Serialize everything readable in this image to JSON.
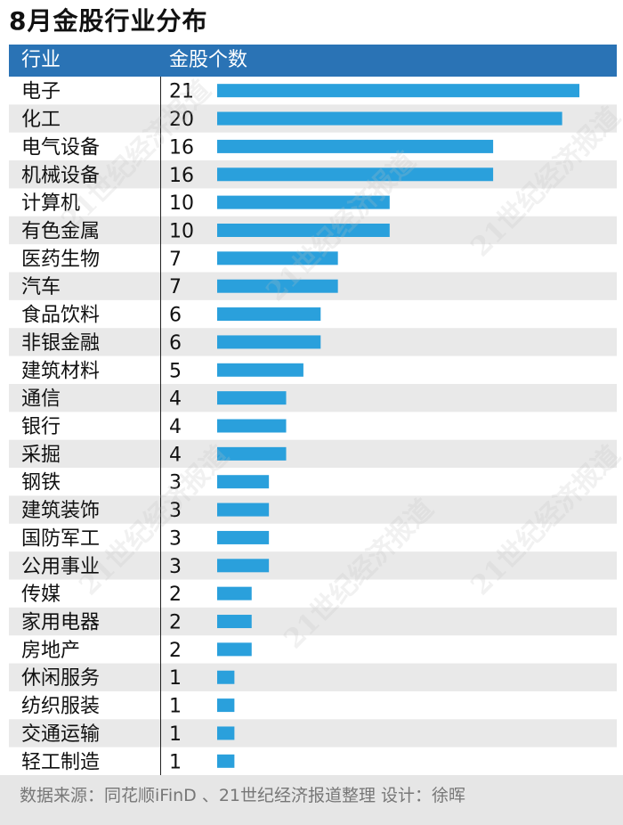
{
  "title": "8月金股行业分布",
  "header": {
    "col1": "行业",
    "col2": "金股个数"
  },
  "chart_data": {
    "type": "bar",
    "orientation": "horizontal",
    "categories": [
      "电子",
      "化工",
      "电气设备",
      "机械设备",
      "计算机",
      "有色金属",
      "医药生物",
      "汽车",
      "食品饮料",
      "非银金融",
      "建筑材料",
      "通信",
      "银行",
      "采掘",
      "钢铁",
      "建筑装饰",
      "国防军工",
      "公用事业",
      "传媒",
      "家用电器",
      "房地产",
      "休闲服务",
      "纺织服装",
      "交通运输",
      "轻工制造"
    ],
    "values": [
      21,
      20,
      16,
      16,
      10,
      10,
      7,
      7,
      6,
      6,
      5,
      4,
      4,
      4,
      3,
      3,
      3,
      3,
      2,
      2,
      2,
      1,
      1,
      1,
      1
    ],
    "xlim": [
      0,
      21
    ],
    "bar_color": "#2aa0dc",
    "stripe_color": "#e9e9e9"
  },
  "footer": "数据来源：同花顺iFinD 、21世纪经济报道整理  设计：徐晖",
  "watermark": "21世纪经济报道"
}
